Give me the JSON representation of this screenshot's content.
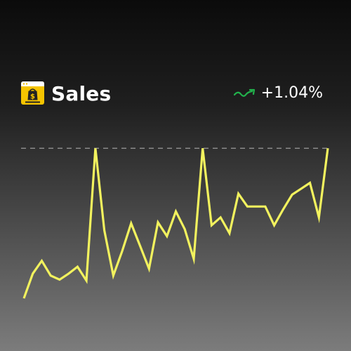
{
  "header": {
    "title": "Sales",
    "change": "+1.04%",
    "app_icon": "shopping-bag-dollar-icon",
    "trend_icon": "trend-up-arrow-icon"
  },
  "colors": {
    "line": "#f2f25e",
    "reference": "#8a8a8a",
    "trend": "#22b24c",
    "icon_bg": "#f5c400"
  },
  "chart_data": {
    "type": "line",
    "series": [
      {
        "values": [
          5,
          30,
          43,
          28,
          24,
          30,
          37,
          23,
          157,
          74,
          28,
          53,
          81,
          58,
          35,
          82,
          68,
          93,
          75,
          45,
          157,
          79,
          87,
          71,
          111,
          98,
          98,
          98,
          79,
          95,
          110,
          116,
          122,
          87,
          157
        ]
      }
    ],
    "reference_line": 157,
    "ylim": [
      0,
      165
    ],
    "grid": false,
    "legend": "none"
  }
}
